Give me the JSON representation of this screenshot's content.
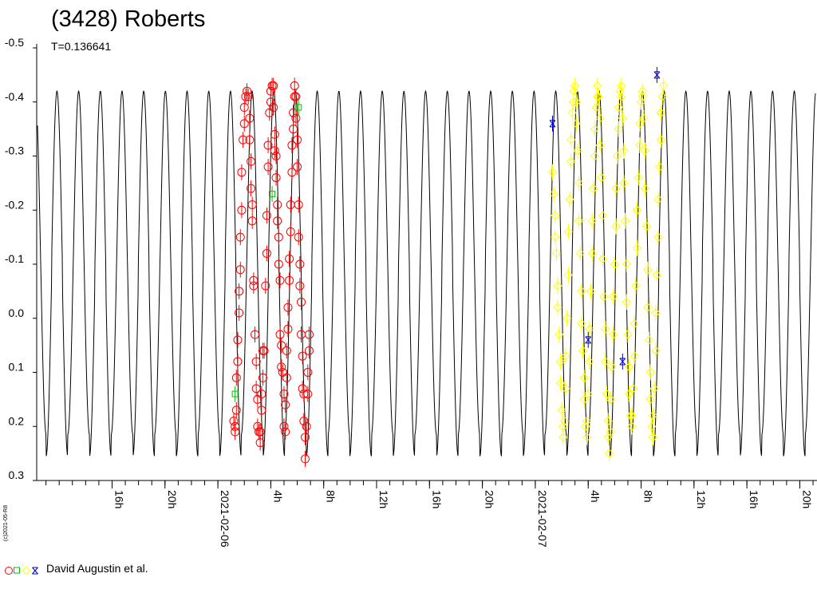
{
  "header": {
    "title": "(3428) Roberts",
    "subtitle": "T=0.136641"
  },
  "legend": {
    "credit": "David Augustin et al.",
    "markers": [
      {
        "shape": "circle",
        "color": "#ff0000"
      },
      {
        "shape": "square",
        "color": "#00c000"
      },
      {
        "shape": "diamond",
        "color": "#ffff00"
      },
      {
        "shape": "star",
        "color": "#0000c0"
      }
    ]
  },
  "stamp": "(c)2021-05-R8",
  "chart_data": {
    "type": "scatter",
    "title": "(3428) Roberts",
    "subtitle": "T=0.136641",
    "y_inverted": true,
    "ylim": [
      -0.5,
      0.3
    ],
    "y_ticks": [
      "-0.5",
      "-0.4",
      "-0.3",
      "-0.2",
      "-0.1",
      "0.0",
      "0.1",
      "0.2",
      "0.3"
    ],
    "xlim_hours": [
      10.3,
      69.3
    ],
    "x_ticks": [
      {
        "h": 16,
        "label": "16h"
      },
      {
        "h": 20,
        "label": "20h"
      },
      {
        "h": 24,
        "label": "2021-02-06"
      },
      {
        "h": 28,
        "label": "4h"
      },
      {
        "h": 32,
        "label": "8h"
      },
      {
        "h": 36,
        "label": "12h"
      },
      {
        "h": 40,
        "label": "16h"
      },
      {
        "h": 44,
        "label": "20h"
      },
      {
        "h": 48,
        "label": "2021-02-07"
      },
      {
        "h": 52,
        "label": "4h"
      },
      {
        "h": 56,
        "label": "8h"
      },
      {
        "h": 60,
        "label": "12h"
      },
      {
        "h": 64,
        "label": "16h"
      },
      {
        "h": 68,
        "label": "20h"
      }
    ],
    "model_curve": {
      "period_days": 0.136641,
      "mean_mag": -0.095,
      "amplitude_main": 0.3,
      "amplitude_secondary": 0.035,
      "color": "#000000"
    },
    "series": [
      {
        "marker": "circle",
        "color": "#ff0000",
        "points": [
          [
            25.2,
            0.19
          ],
          [
            25.3,
            0.2
          ],
          [
            25.3,
            0.21
          ],
          [
            25.4,
            0.17
          ],
          [
            25.4,
            0.11
          ],
          [
            25.5,
            0.08
          ],
          [
            25.5,
            0.04
          ],
          [
            25.6,
            -0.01
          ],
          [
            25.6,
            -0.05
          ],
          [
            25.7,
            -0.09
          ],
          [
            25.7,
            -0.15
          ],
          [
            25.8,
            -0.2
          ],
          [
            25.8,
            -0.27
          ],
          [
            25.9,
            -0.33
          ],
          [
            26.0,
            -0.36
          ],
          [
            26.0,
            -0.39
          ],
          [
            26.1,
            -0.41
          ],
          [
            26.2,
            -0.42
          ],
          [
            26.3,
            -0.41
          ],
          [
            26.4,
            -0.37
          ],
          [
            26.4,
            -0.33
          ],
          [
            26.5,
            -0.29
          ],
          [
            26.5,
            -0.24
          ],
          [
            26.6,
            -0.21
          ],
          [
            26.6,
            -0.18
          ],
          [
            26.7,
            -0.07
          ],
          [
            26.7,
            -0.06
          ],
          [
            26.8,
            0.03
          ],
          [
            26.9,
            0.08
          ],
          [
            26.9,
            0.13
          ],
          [
            27.0,
            0.15
          ],
          [
            27.0,
            0.2
          ],
          [
            27.1,
            0.21
          ],
          [
            27.2,
            0.23
          ],
          [
            27.2,
            0.21
          ],
          [
            27.3,
            0.17
          ],
          [
            27.3,
            0.14
          ],
          [
            27.4,
            0.11
          ],
          [
            27.4,
            0.06
          ],
          [
            27.5,
            0.06
          ],
          [
            27.6,
            -0.06
          ],
          [
            27.7,
            -0.12
          ],
          [
            27.7,
            -0.19
          ],
          [
            27.8,
            -0.28
          ],
          [
            27.8,
            -0.32
          ],
          [
            27.9,
            -0.38
          ],
          [
            28.0,
            -0.4
          ],
          [
            28.0,
            -0.42
          ],
          [
            28.1,
            -0.43
          ],
          [
            28.2,
            -0.43
          ],
          [
            28.2,
            -0.39
          ],
          [
            28.3,
            -0.34
          ],
          [
            28.3,
            -0.31
          ],
          [
            28.4,
            -0.3
          ],
          [
            28.4,
            -0.26
          ],
          [
            28.5,
            -0.21
          ],
          [
            28.5,
            -0.18
          ],
          [
            28.6,
            -0.15
          ],
          [
            28.6,
            -0.1
          ],
          [
            28.7,
            -0.07
          ],
          [
            28.7,
            0.03
          ],
          [
            28.8,
            0.05
          ],
          [
            28.8,
            0.09
          ],
          [
            28.9,
            0.1
          ],
          [
            29.0,
            0.14
          ],
          [
            29.0,
            0.2
          ],
          [
            29.1,
            0.21
          ],
          [
            29.1,
            0.16
          ],
          [
            29.2,
            0.11
          ],
          [
            29.2,
            0.06
          ],
          [
            29.3,
            0.02
          ],
          [
            29.3,
            -0.02
          ],
          [
            29.4,
            -0.07
          ],
          [
            29.4,
            -0.11
          ],
          [
            29.5,
            -0.16
          ],
          [
            29.5,
            -0.21
          ],
          [
            29.6,
            -0.27
          ],
          [
            29.6,
            -0.32
          ],
          [
            29.7,
            -0.35
          ],
          [
            29.7,
            -0.38
          ],
          [
            29.8,
            -0.41
          ],
          [
            29.8,
            -0.43
          ],
          [
            29.9,
            -0.41
          ],
          [
            29.9,
            -0.37
          ],
          [
            30.0,
            -0.33
          ],
          [
            30.0,
            -0.28
          ],
          [
            30.1,
            -0.21
          ],
          [
            30.1,
            -0.15
          ],
          [
            30.2,
            -0.1
          ],
          [
            30.2,
            -0.06
          ],
          [
            30.3,
            -0.03
          ],
          [
            30.3,
            0.03
          ],
          [
            30.4,
            0.07
          ],
          [
            30.4,
            0.13
          ],
          [
            30.5,
            0.14
          ],
          [
            30.5,
            0.19
          ],
          [
            30.6,
            0.22
          ],
          [
            30.6,
            0.26
          ],
          [
            30.7,
            0.2
          ],
          [
            30.8,
            0.14
          ],
          [
            30.8,
            0.1
          ],
          [
            30.9,
            0.06
          ],
          [
            30.9,
            0.03
          ]
        ]
      },
      {
        "marker": "square",
        "color": "#00c000",
        "points": [
          [
            25.3,
            0.14
          ],
          [
            28.1,
            -0.23
          ],
          [
            30.1,
            -0.39
          ]
        ]
      },
      {
        "marker": "diamond",
        "color": "#ffff00",
        "points": [
          [
            49.3,
            -0.27
          ],
          [
            49.4,
            -0.23
          ],
          [
            49.5,
            -0.19
          ],
          [
            49.5,
            -0.15
          ],
          [
            49.6,
            -0.12
          ],
          [
            49.7,
            -0.06
          ],
          [
            49.7,
            -0.02
          ],
          [
            49.8,
            0.03
          ],
          [
            49.9,
            0.08
          ],
          [
            49.9,
            0.12
          ],
          [
            50.0,
            0.17
          ],
          [
            50.1,
            0.2
          ],
          [
            50.1,
            0.22
          ],
          [
            50.2,
            0.19
          ],
          [
            50.3,
            0.13
          ],
          [
            50.3,
            0.07
          ],
          [
            50.4,
            0.0
          ],
          [
            50.5,
            -0.08
          ],
          [
            50.5,
            -0.16
          ],
          [
            50.6,
            -0.22
          ],
          [
            50.7,
            -0.29
          ],
          [
            50.7,
            -0.33
          ],
          [
            50.8,
            -0.38
          ],
          [
            50.9,
            -0.4
          ],
          [
            50.9,
            -0.42
          ],
          [
            51.0,
            -0.43
          ],
          [
            51.1,
            -0.4
          ],
          [
            51.1,
            -0.36
          ],
          [
            51.2,
            -0.31
          ],
          [
            51.3,
            -0.25
          ],
          [
            51.3,
            -0.18
          ],
          [
            51.4,
            -0.12
          ],
          [
            51.5,
            -0.05
          ],
          [
            51.5,
            0.01
          ],
          [
            51.6,
            0.06
          ],
          [
            51.7,
            0.11
          ],
          [
            51.7,
            0.15
          ],
          [
            51.8,
            0.2
          ],
          [
            51.9,
            0.22
          ],
          [
            51.9,
            0.19
          ],
          [
            52.0,
            0.14
          ],
          [
            52.1,
            0.08
          ],
          [
            52.1,
            0.02
          ],
          [
            52.2,
            -0.05
          ],
          [
            52.3,
            -0.12
          ],
          [
            52.3,
            -0.18
          ],
          [
            52.4,
            -0.24
          ],
          [
            52.5,
            -0.3
          ],
          [
            52.5,
            -0.35
          ],
          [
            52.6,
            -0.39
          ],
          [
            52.7,
            -0.41
          ],
          [
            52.7,
            -0.43
          ],
          [
            52.8,
            -0.41
          ],
          [
            52.9,
            -0.37
          ],
          [
            52.9,
            -0.32
          ],
          [
            53.0,
            -0.26
          ],
          [
            53.1,
            -0.19
          ],
          [
            53.1,
            -0.11
          ],
          [
            53.2,
            -0.04
          ],
          [
            53.3,
            0.02
          ],
          [
            53.3,
            0.08
          ],
          [
            53.4,
            0.14
          ],
          [
            53.5,
            0.19
          ],
          [
            53.5,
            0.22
          ],
          [
            53.6,
            0.25
          ],
          [
            53.7,
            0.21
          ],
          [
            53.7,
            0.15
          ],
          [
            53.8,
            0.09
          ],
          [
            53.9,
            0.03
          ],
          [
            53.9,
            -0.04
          ],
          [
            54.0,
            -0.1
          ],
          [
            54.1,
            -0.17
          ],
          [
            54.1,
            -0.24
          ],
          [
            54.2,
            -0.3
          ],
          [
            54.3,
            -0.35
          ],
          [
            54.3,
            -0.39
          ],
          [
            54.4,
            -0.42
          ],
          [
            54.5,
            -0.43
          ],
          [
            54.5,
            -0.41
          ],
          [
            54.6,
            -0.37
          ],
          [
            54.7,
            -0.31
          ],
          [
            54.7,
            -0.25
          ],
          [
            54.8,
            -0.18
          ],
          [
            54.9,
            -0.1
          ],
          [
            54.9,
            -0.03
          ],
          [
            55.0,
            0.03
          ],
          [
            55.1,
            0.09
          ],
          [
            55.1,
            0.14
          ],
          [
            55.2,
            0.18
          ],
          [
            55.3,
            0.2
          ],
          [
            55.3,
            0.18
          ],
          [
            55.4,
            0.13
          ],
          [
            55.5,
            0.07
          ],
          [
            55.5,
            0.01
          ],
          [
            55.6,
            -0.06
          ],
          [
            55.7,
            -0.13
          ],
          [
            55.7,
            -0.2
          ],
          [
            55.8,
            -0.26
          ],
          [
            55.9,
            -0.32
          ],
          [
            55.9,
            -0.36
          ],
          [
            56.0,
            -0.4
          ],
          [
            56.1,
            -0.42
          ],
          [
            56.1,
            -0.41
          ],
          [
            56.2,
            -0.37
          ],
          [
            56.3,
            -0.31
          ],
          [
            56.3,
            -0.24
          ],
          [
            56.4,
            -0.17
          ],
          [
            56.5,
            -0.09
          ],
          [
            56.5,
            -0.02
          ],
          [
            56.6,
            0.04
          ],
          [
            56.7,
            0.1
          ],
          [
            56.7,
            0.15
          ],
          [
            56.8,
            0.2
          ],
          [
            56.9,
            0.22
          ],
          [
            56.9,
            0.18
          ],
          [
            57.0,
            0.13
          ],
          [
            57.1,
            0.06
          ],
          [
            57.1,
            -0.01
          ],
          [
            57.2,
            -0.08
          ],
          [
            57.3,
            -0.15
          ],
          [
            57.3,
            -0.22
          ],
          [
            57.4,
            -0.28
          ],
          [
            57.5,
            -0.33
          ],
          [
            57.5,
            -0.38
          ],
          [
            57.6,
            -0.41
          ],
          [
            57.7,
            -0.43
          ]
        ]
      },
      {
        "marker": "star",
        "color": "#0000c0",
        "points": [
          [
            49.3,
            -0.36
          ],
          [
            52.0,
            0.04
          ],
          [
            54.6,
            0.08
          ],
          [
            57.2,
            -0.45
          ]
        ]
      }
    ]
  }
}
